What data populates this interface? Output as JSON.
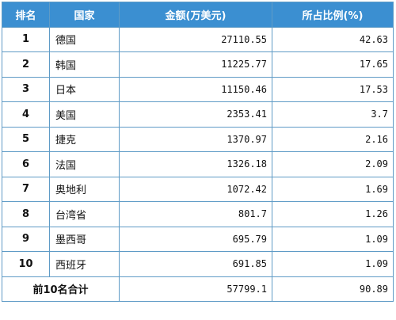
{
  "table": {
    "headers": {
      "rank": "排名",
      "country": "国家",
      "amount": "金额(万美元)",
      "share": "所占比例(%)"
    },
    "rows": [
      {
        "rank": "1",
        "country": "德国",
        "amount": "27110.55",
        "share": "42.63"
      },
      {
        "rank": "2",
        "country": "韩国",
        "amount": "11225.77",
        "share": "17.65"
      },
      {
        "rank": "3",
        "country": "日本",
        "amount": "11150.46",
        "share": "17.53"
      },
      {
        "rank": "4",
        "country": "美国",
        "amount": "2353.41",
        "share": "3.7"
      },
      {
        "rank": "5",
        "country": "捷克",
        "amount": "1370.97",
        "share": "2.16"
      },
      {
        "rank": "6",
        "country": "法国",
        "amount": "1326.18",
        "share": "2.09"
      },
      {
        "rank": "7",
        "country": "奥地利",
        "amount": "1072.42",
        "share": "1.69"
      },
      {
        "rank": "8",
        "country": "台湾省",
        "amount": "801.7",
        "share": "1.26"
      },
      {
        "rank": "9",
        "country": "墨西哥",
        "amount": "695.79",
        "share": "1.09"
      },
      {
        "rank": "10",
        "country": "西班牙",
        "amount": "691.85",
        "share": "1.09"
      }
    ],
    "total": {
      "label": "前10名合计",
      "amount": "57799.1",
      "share": "90.89"
    }
  },
  "colors": {
    "header_bg": "#3b8fd1",
    "border": "#5f9bc6"
  }
}
